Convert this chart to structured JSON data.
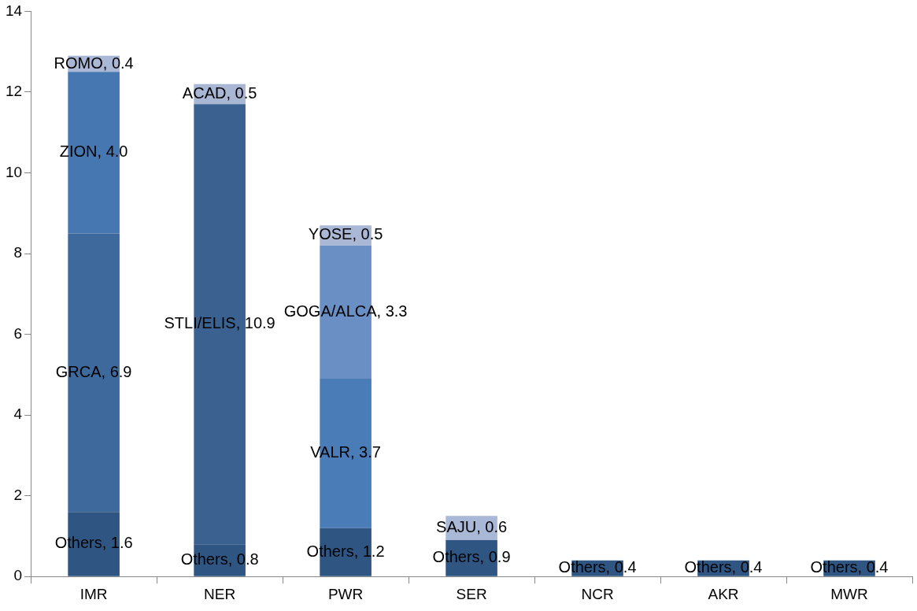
{
  "chart_data": {
    "type": "bar",
    "stacked": true,
    "categories": [
      "IMR",
      "NER",
      "PWR",
      "SER",
      "NCR",
      "AKR",
      "MWR"
    ],
    "ylim": [
      0,
      14
    ],
    "yticks": [
      0,
      2,
      4,
      6,
      8,
      10,
      12,
      14
    ],
    "series": [
      {
        "values": [
          1.6,
          0.8,
          1.2,
          0.9,
          0.4,
          0.4,
          0.4
        ],
        "colors": [
          "#2f5583",
          "#2f5583",
          "#2f5583",
          "#2f5583",
          "#2f5583",
          "#2f5583",
          "#2f5583"
        ],
        "value_labels": [
          "Others, 1.6",
          "Others, 0.8",
          "Others, 1.2",
          "Others, 0.9",
          "Others, 0.4",
          "Others, 0.4",
          "Others, 0.4"
        ]
      },
      {
        "values": [
          6.9,
          10.9,
          3.7,
          0.6,
          null,
          null,
          null
        ],
        "colors": [
          "#3d699c",
          "#3a6190",
          "#4a7cb8",
          "#a9b8d6",
          null,
          null,
          null
        ],
        "value_labels": [
          "GRCA, 6.9",
          "STLI/ELIS, 10.9",
          "VALR, 3.7",
          "SAJU, 0.6",
          null,
          null,
          null
        ]
      },
      {
        "values": [
          4.0,
          0.5,
          3.3,
          null,
          null,
          null,
          null
        ],
        "colors": [
          "#4677b0",
          "#a9b7d4",
          "#6a8fc4",
          null,
          null,
          null,
          null
        ],
        "value_labels": [
          "ZION, 4.0",
          "ACAD, 0.5",
          "GOGA/ALCA, 3.3",
          null,
          null,
          null,
          null
        ]
      },
      {
        "values": [
          0.4,
          null,
          0.5,
          null,
          null,
          null,
          null
        ],
        "colors": [
          "#aab8d5",
          null,
          "#aab8d5",
          null,
          null,
          null,
          null
        ],
        "value_labels": [
          "ROMO, 0.4",
          null,
          "YOSE, 0.5",
          null,
          null,
          null,
          null
        ]
      }
    ]
  }
}
